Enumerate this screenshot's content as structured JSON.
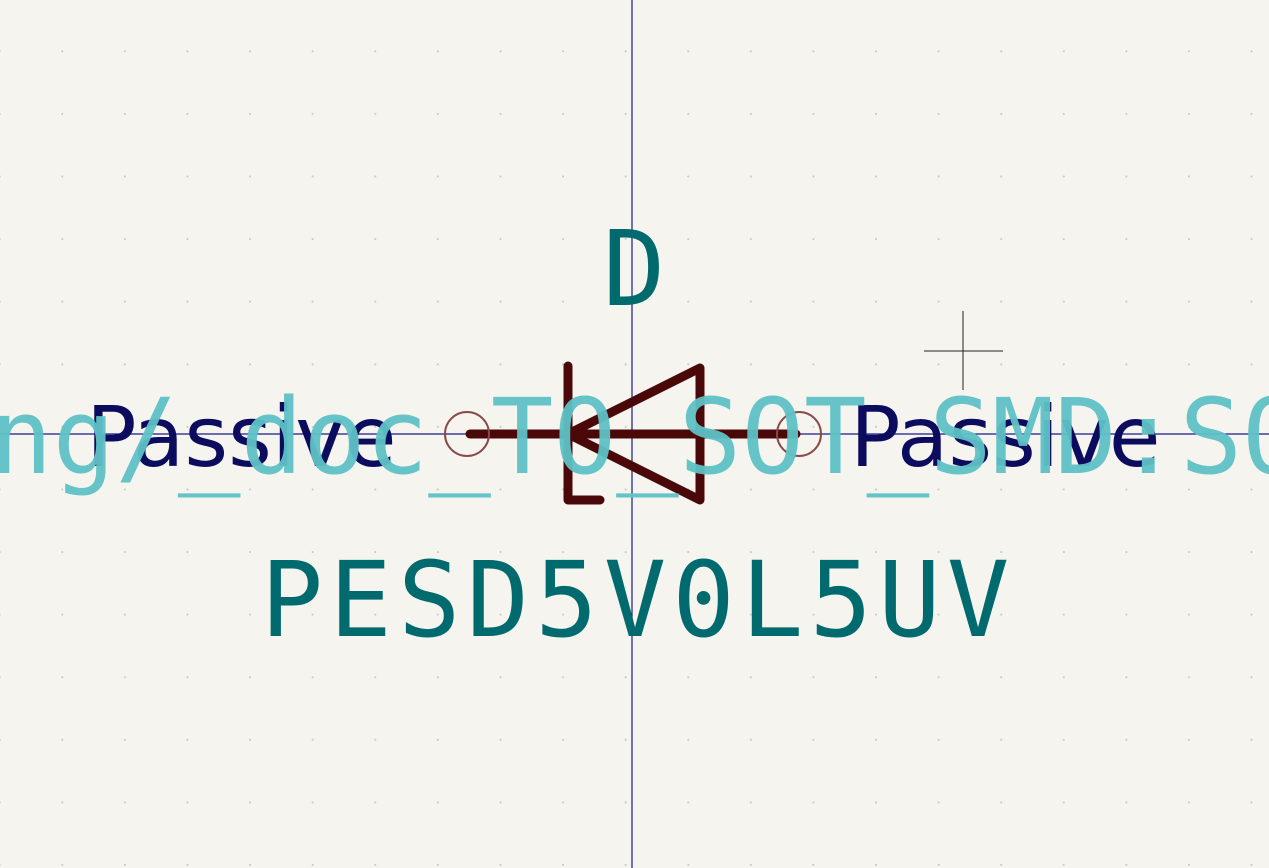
{
  "symbol": {
    "reference": "D",
    "value": "PESD5V0L5UV",
    "footprint": "ng/_doc_TO_SOT_SMD:SOT",
    "pin_left_type": "Passive",
    "pin_right_type": "Passive"
  },
  "colors": {
    "background": "#f5f4ef",
    "symbol_body": "#4a0808",
    "pin_circle": "#8a4a4a",
    "field_text": "#006a6e",
    "pin_type_text": "#0c0c5e",
    "footprint_text": "#5fc2c6",
    "axis": "#1a1a8a",
    "cursor": "#222222"
  }
}
